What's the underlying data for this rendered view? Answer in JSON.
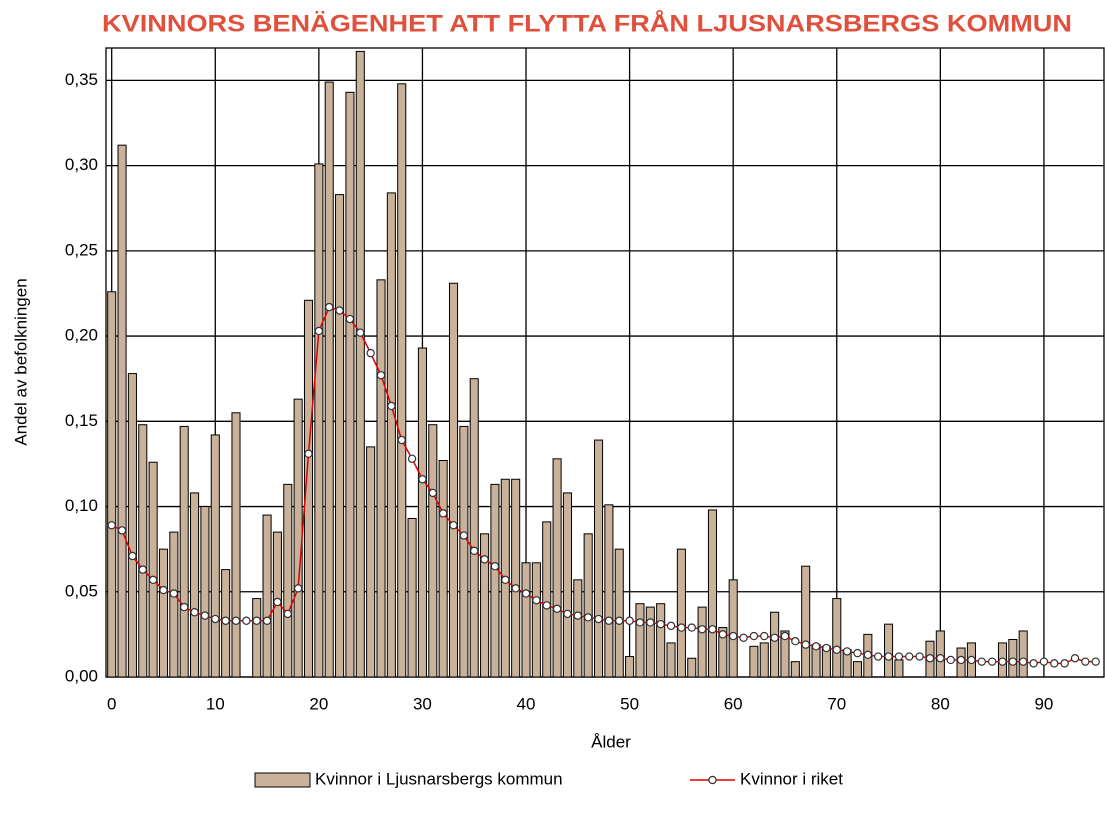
{
  "chart_data": {
    "type": "bar",
    "title": "KVINNORS BENÄGENHET ATT FLYTTA FRÅN LJUSNARSBERGS KOMMUN",
    "xlabel": "Ålder",
    "ylabel": "Andel av befolkningen",
    "x": [
      0,
      1,
      2,
      3,
      4,
      5,
      6,
      7,
      8,
      9,
      10,
      11,
      12,
      13,
      14,
      15,
      16,
      17,
      18,
      19,
      20,
      21,
      22,
      23,
      24,
      25,
      26,
      27,
      28,
      29,
      30,
      31,
      32,
      33,
      34,
      35,
      36,
      37,
      38,
      39,
      40,
      41,
      42,
      43,
      44,
      45,
      46,
      47,
      48,
      49,
      50,
      51,
      52,
      53,
      54,
      55,
      56,
      57,
      58,
      59,
      60,
      61,
      62,
      63,
      64,
      65,
      66,
      67,
      68,
      69,
      70,
      71,
      72,
      73,
      74,
      75,
      76,
      77,
      78,
      79,
      80,
      81,
      82,
      83,
      84,
      85,
      86,
      87,
      88,
      89,
      90,
      91,
      92,
      93,
      94,
      95
    ],
    "series": [
      {
        "name": "Kvinnor i Ljusnarsbergs kommun",
        "type": "bar",
        "color": "#c9b299",
        "values": [
          0.226,
          0.312,
          0.178,
          0.148,
          0.126,
          0.075,
          0.085,
          0.147,
          0.108,
          0.1,
          0.142,
          0.063,
          0.155,
          0.0,
          0.046,
          0.095,
          0.085,
          0.113,
          0.163,
          0.221,
          0.301,
          0.349,
          0.283,
          0.343,
          0.367,
          0.135,
          0.233,
          0.284,
          0.348,
          0.093,
          0.193,
          0.148,
          0.127,
          0.231,
          0.147,
          0.175,
          0.084,
          0.113,
          0.116,
          0.116,
          0.067,
          0.067,
          0.091,
          0.128,
          0.108,
          0.057,
          0.084,
          0.139,
          0.101,
          0.075,
          0.012,
          0.043,
          0.041,
          0.043,
          0.02,
          0.075,
          0.011,
          0.041,
          0.098,
          0.029,
          0.057,
          0.0,
          0.018,
          0.02,
          0.038,
          0.027,
          0.009,
          0.065,
          0.019,
          0.018,
          0.046,
          0.016,
          0.009,
          0.025,
          0.0,
          0.031,
          0.01,
          0.0,
          0.0,
          0.021,
          0.027,
          0.0,
          0.017,
          0.02,
          0.0,
          0.0,
          0.02,
          0.022,
          0.027,
          0.0,
          0.0,
          0.0,
          0.0,
          0.0,
          0.0,
          0.0
        ]
      },
      {
        "name": "Kvinnor i riket",
        "type": "line",
        "color": "#e00000",
        "values": [
          0.089,
          0.086,
          0.071,
          0.063,
          0.057,
          0.051,
          0.049,
          0.041,
          0.038,
          0.036,
          0.034,
          0.033,
          0.033,
          0.033,
          0.033,
          0.033,
          0.044,
          0.037,
          0.052,
          0.131,
          0.203,
          0.217,
          0.215,
          0.21,
          0.202,
          0.19,
          0.177,
          0.159,
          0.139,
          0.128,
          0.116,
          0.108,
          0.096,
          0.089,
          0.083,
          0.074,
          0.069,
          0.065,
          0.057,
          0.052,
          0.049,
          0.045,
          0.042,
          0.04,
          0.037,
          0.036,
          0.035,
          0.034,
          0.033,
          0.033,
          0.033,
          0.032,
          0.032,
          0.031,
          0.03,
          0.029,
          0.029,
          0.028,
          0.028,
          0.025,
          0.024,
          0.023,
          0.024,
          0.024,
          0.023,
          0.024,
          0.021,
          0.019,
          0.018,
          0.017,
          0.016,
          0.015,
          0.014,
          0.013,
          0.012,
          0.012,
          0.012,
          0.012,
          0.012,
          0.011,
          0.011,
          0.01,
          0.01,
          0.01,
          0.009,
          0.009,
          0.009,
          0.009,
          0.009,
          0.008,
          0.009,
          0.008,
          0.008,
          0.011,
          0.009,
          0.009
        ]
      }
    ],
    "xlim": [
      -0.55,
      95.8
    ],
    "xticks": [
      0,
      10,
      20,
      30,
      40,
      50,
      60,
      70,
      80,
      90
    ],
    "ylim": [
      0,
      0.369
    ],
    "yticks": [
      {
        "value": 0,
        "label": "0,00"
      },
      {
        "value": 0.05,
        "label": "0,05"
      },
      {
        "value": 0.1,
        "label": "0,10"
      },
      {
        "value": 0.15,
        "label": "0,15"
      },
      {
        "value": 0.2,
        "label": "0,20"
      },
      {
        "value": 0.25,
        "label": "0,25"
      },
      {
        "value": 0.3,
        "label": "0,30"
      },
      {
        "value": 0.35,
        "label": "0,35"
      }
    ],
    "grid": true,
    "legend": "bottom"
  }
}
